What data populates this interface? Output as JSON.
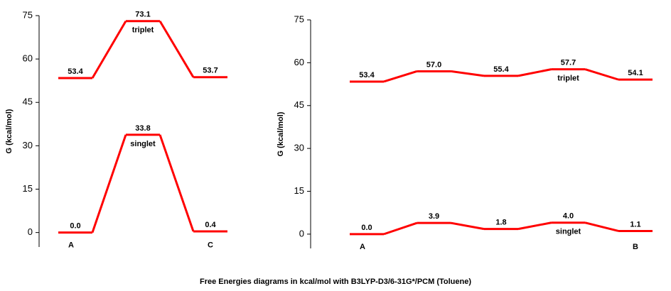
{
  "caption": "Free Energies diagrams  in kcal/mol  with B3LYP-D3/6-31G*/PCM (Toluene)",
  "chart_data": [
    {
      "type": "line",
      "ylabel": "G (kcal/mol)",
      "categories": [
        "A",
        null,
        "C"
      ],
      "series": [
        {
          "name": "triplet",
          "color": "#ff0000",
          "values": [
            53.4,
            73.1,
            53.7
          ],
          "value_labels": [
            "53.4",
            "73.1",
            "53.7"
          ]
        },
        {
          "name": "singlet",
          "color": "#ff0000",
          "values": [
            0.0,
            33.8,
            0.4
          ],
          "value_labels": [
            "0.0",
            "33.8",
            "0.4"
          ]
        }
      ],
      "ylim": [
        -5,
        75
      ],
      "yticks": [
        0,
        15,
        30,
        45,
        60,
        75
      ]
    },
    {
      "type": "line",
      "ylabel": "G (kcal/mol)",
      "categories": [
        "A",
        null,
        null,
        null,
        "B"
      ],
      "series": [
        {
          "name": "triplet",
          "color": "#ff0000",
          "values": [
            53.4,
            57.0,
            55.4,
            57.7,
            54.1
          ],
          "value_labels": [
            "53.4",
            "57.0",
            "55.4",
            "57.7",
            "54.1"
          ]
        },
        {
          "name": "singlet",
          "color": "#ff0000",
          "values": [
            0.0,
            3.9,
            1.8,
            4.0,
            1.1
          ],
          "value_labels": [
            "0.0",
            "3.9",
            "1.8",
            "4.0",
            "1.1"
          ]
        }
      ],
      "ylim": [
        -5,
        75
      ],
      "yticks": [
        0,
        15,
        30,
        45,
        60,
        75
      ]
    }
  ]
}
